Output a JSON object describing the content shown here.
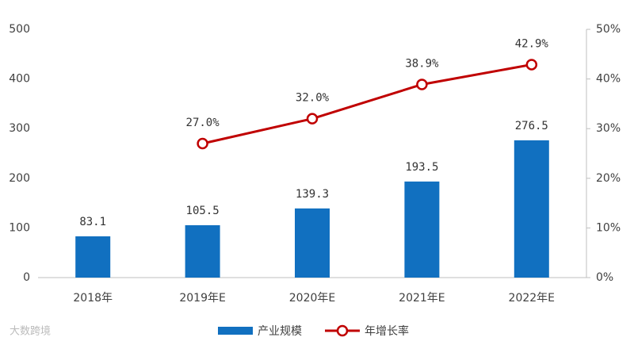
{
  "chart_data": {
    "type": "combo",
    "categories": [
      "2018年",
      "2019年E",
      "2020年E",
      "2021年E",
      "2022年E"
    ],
    "series": [
      {
        "name": "产业规模",
        "type": "bar",
        "color": "#1170c0",
        "values": [
          83.1,
          105.5,
          139.3,
          193.5,
          276.5
        ]
      },
      {
        "name": "年增长率",
        "type": "line",
        "axis": "y2",
        "color": "#c00000",
        "values": [
          null,
          27.0,
          32.0,
          38.9,
          42.9
        ],
        "value_labels": [
          null,
          "27.0%",
          "32.0%",
          "38.9%",
          "42.9%"
        ]
      }
    ],
    "ylim": [
      0,
      500
    ],
    "yticks": [
      0,
      100,
      200,
      300,
      400,
      500
    ],
    "y2lim": [
      0,
      50
    ],
    "y2ticks": [
      {
        "value": 0,
        "label": "0%"
      },
      {
        "value": 10,
        "label": "10%"
      },
      {
        "value": 20,
        "label": "20%"
      },
      {
        "value": 30,
        "label": "30%"
      },
      {
        "value": 40,
        "label": "40%"
      },
      {
        "value": 50,
        "label": "50%"
      }
    ],
    "legend": "bottom",
    "watermark": "大数跨境"
  }
}
